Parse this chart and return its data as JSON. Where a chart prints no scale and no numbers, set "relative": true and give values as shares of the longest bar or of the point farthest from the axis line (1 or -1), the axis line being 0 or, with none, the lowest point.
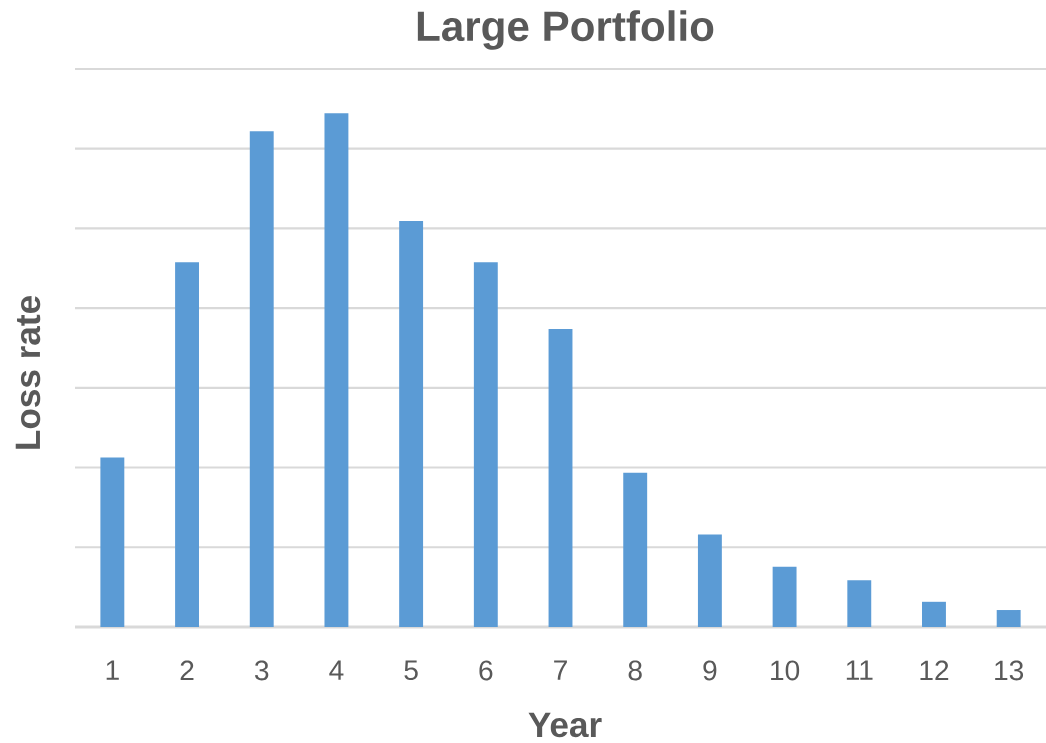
{
  "chart_data": {
    "type": "bar",
    "title": "Large Portfolio",
    "xlabel": "Year",
    "ylabel": "Loss rate",
    "categories": [
      "1",
      "2",
      "3",
      "4",
      "5",
      "6",
      "7",
      "8",
      "9",
      "10",
      "11",
      "12",
      "13"
    ],
    "values": [
      0.33,
      0.71,
      0.965,
      1,
      0.79,
      0.71,
      0.58,
      0.3,
      0.18,
      0.117,
      0.091,
      0.049,
      0.033
    ],
    "color": "#5b9bd5",
    "relative": true,
    "grid": "y"
  }
}
